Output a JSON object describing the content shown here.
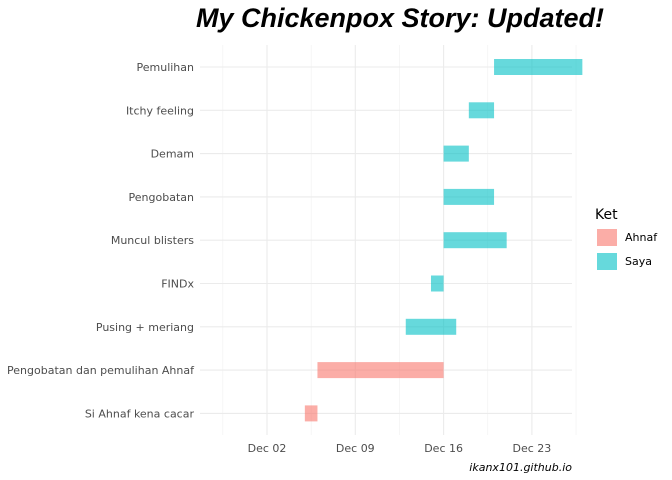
{
  "chart_data": {
    "type": "gantt",
    "title": "My Chickenpox Story: Updated!",
    "caption": "ikanx101.github.io",
    "xlabel": "",
    "ylabel": "",
    "x_ticks": [
      "Dec 02",
      "Dec 09",
      "Dec 16",
      "Dec 23"
    ],
    "legend": {
      "title": "Ket",
      "entries": [
        {
          "name": "Ahnaf",
          "color": "#F8766D"
        },
        {
          "name": "Saya",
          "color": "#00BFC4"
        }
      ]
    },
    "tasks": [
      {
        "label": "Pemulihan",
        "group": "Saya",
        "start": 20,
        "end": 27
      },
      {
        "label": "Itchy feeling",
        "group": "Saya",
        "start": 18,
        "end": 20
      },
      {
        "label": "Demam",
        "group": "Saya",
        "start": 16,
        "end": 18
      },
      {
        "label": "Pengobatan",
        "group": "Saya",
        "start": 16,
        "end": 20
      },
      {
        "label": "Muncul blisters",
        "group": "Saya",
        "start": 16,
        "end": 21
      },
      {
        "label": "FINDx",
        "group": "Saya",
        "start": 15,
        "end": 16
      },
      {
        "label": "Pusing + meriang",
        "group": "Saya",
        "start": 13,
        "end": 17
      },
      {
        "label": "Pengobatan dan pemulihan Ahnaf",
        "group": "Ahnaf",
        "start": 6,
        "end": 16
      },
      {
        "label": "Si Ahnaf kena cacar",
        "group": "Ahnaf",
        "start": 5,
        "end": 6
      }
    ]
  }
}
